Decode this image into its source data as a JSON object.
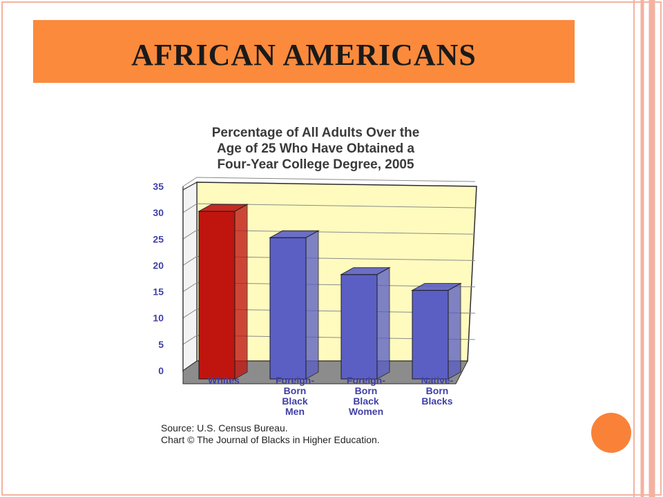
{
  "slide": {
    "title": "AFRICAN AMERICANS",
    "accent_color": "#fb8a3c",
    "border_color": "#f4b2a0",
    "circle_color": "#f98238"
  },
  "chart_data": {
    "type": "bar",
    "title_lines": [
      "Percentage of All Adults Over the",
      "Age of 25 Who Have Obtained a",
      "Four-Year College Degree, 2005"
    ],
    "categories": [
      [
        "Whites"
      ],
      [
        "Foreign-",
        "Born",
        "Black",
        "Men"
      ],
      [
        "Foreign-",
        "Born",
        "Black",
        "Women"
      ],
      [
        "Native-",
        "Born",
        "Blacks"
      ]
    ],
    "values": [
      30,
      25,
      18,
      15
    ],
    "colors": [
      "#c0140f",
      "#5b5fc4",
      "#5b5fc4",
      "#5b5fc4"
    ],
    "yticks": [
      0,
      5,
      10,
      15,
      20,
      25,
      30,
      35
    ],
    "ylim": [
      0,
      35
    ],
    "grid": true,
    "plot_background": "#fffbbf",
    "source_lines": [
      "Source: U.S. Census Bureau.",
      "Chart © The Journal of Blacks in Higher Education."
    ]
  }
}
